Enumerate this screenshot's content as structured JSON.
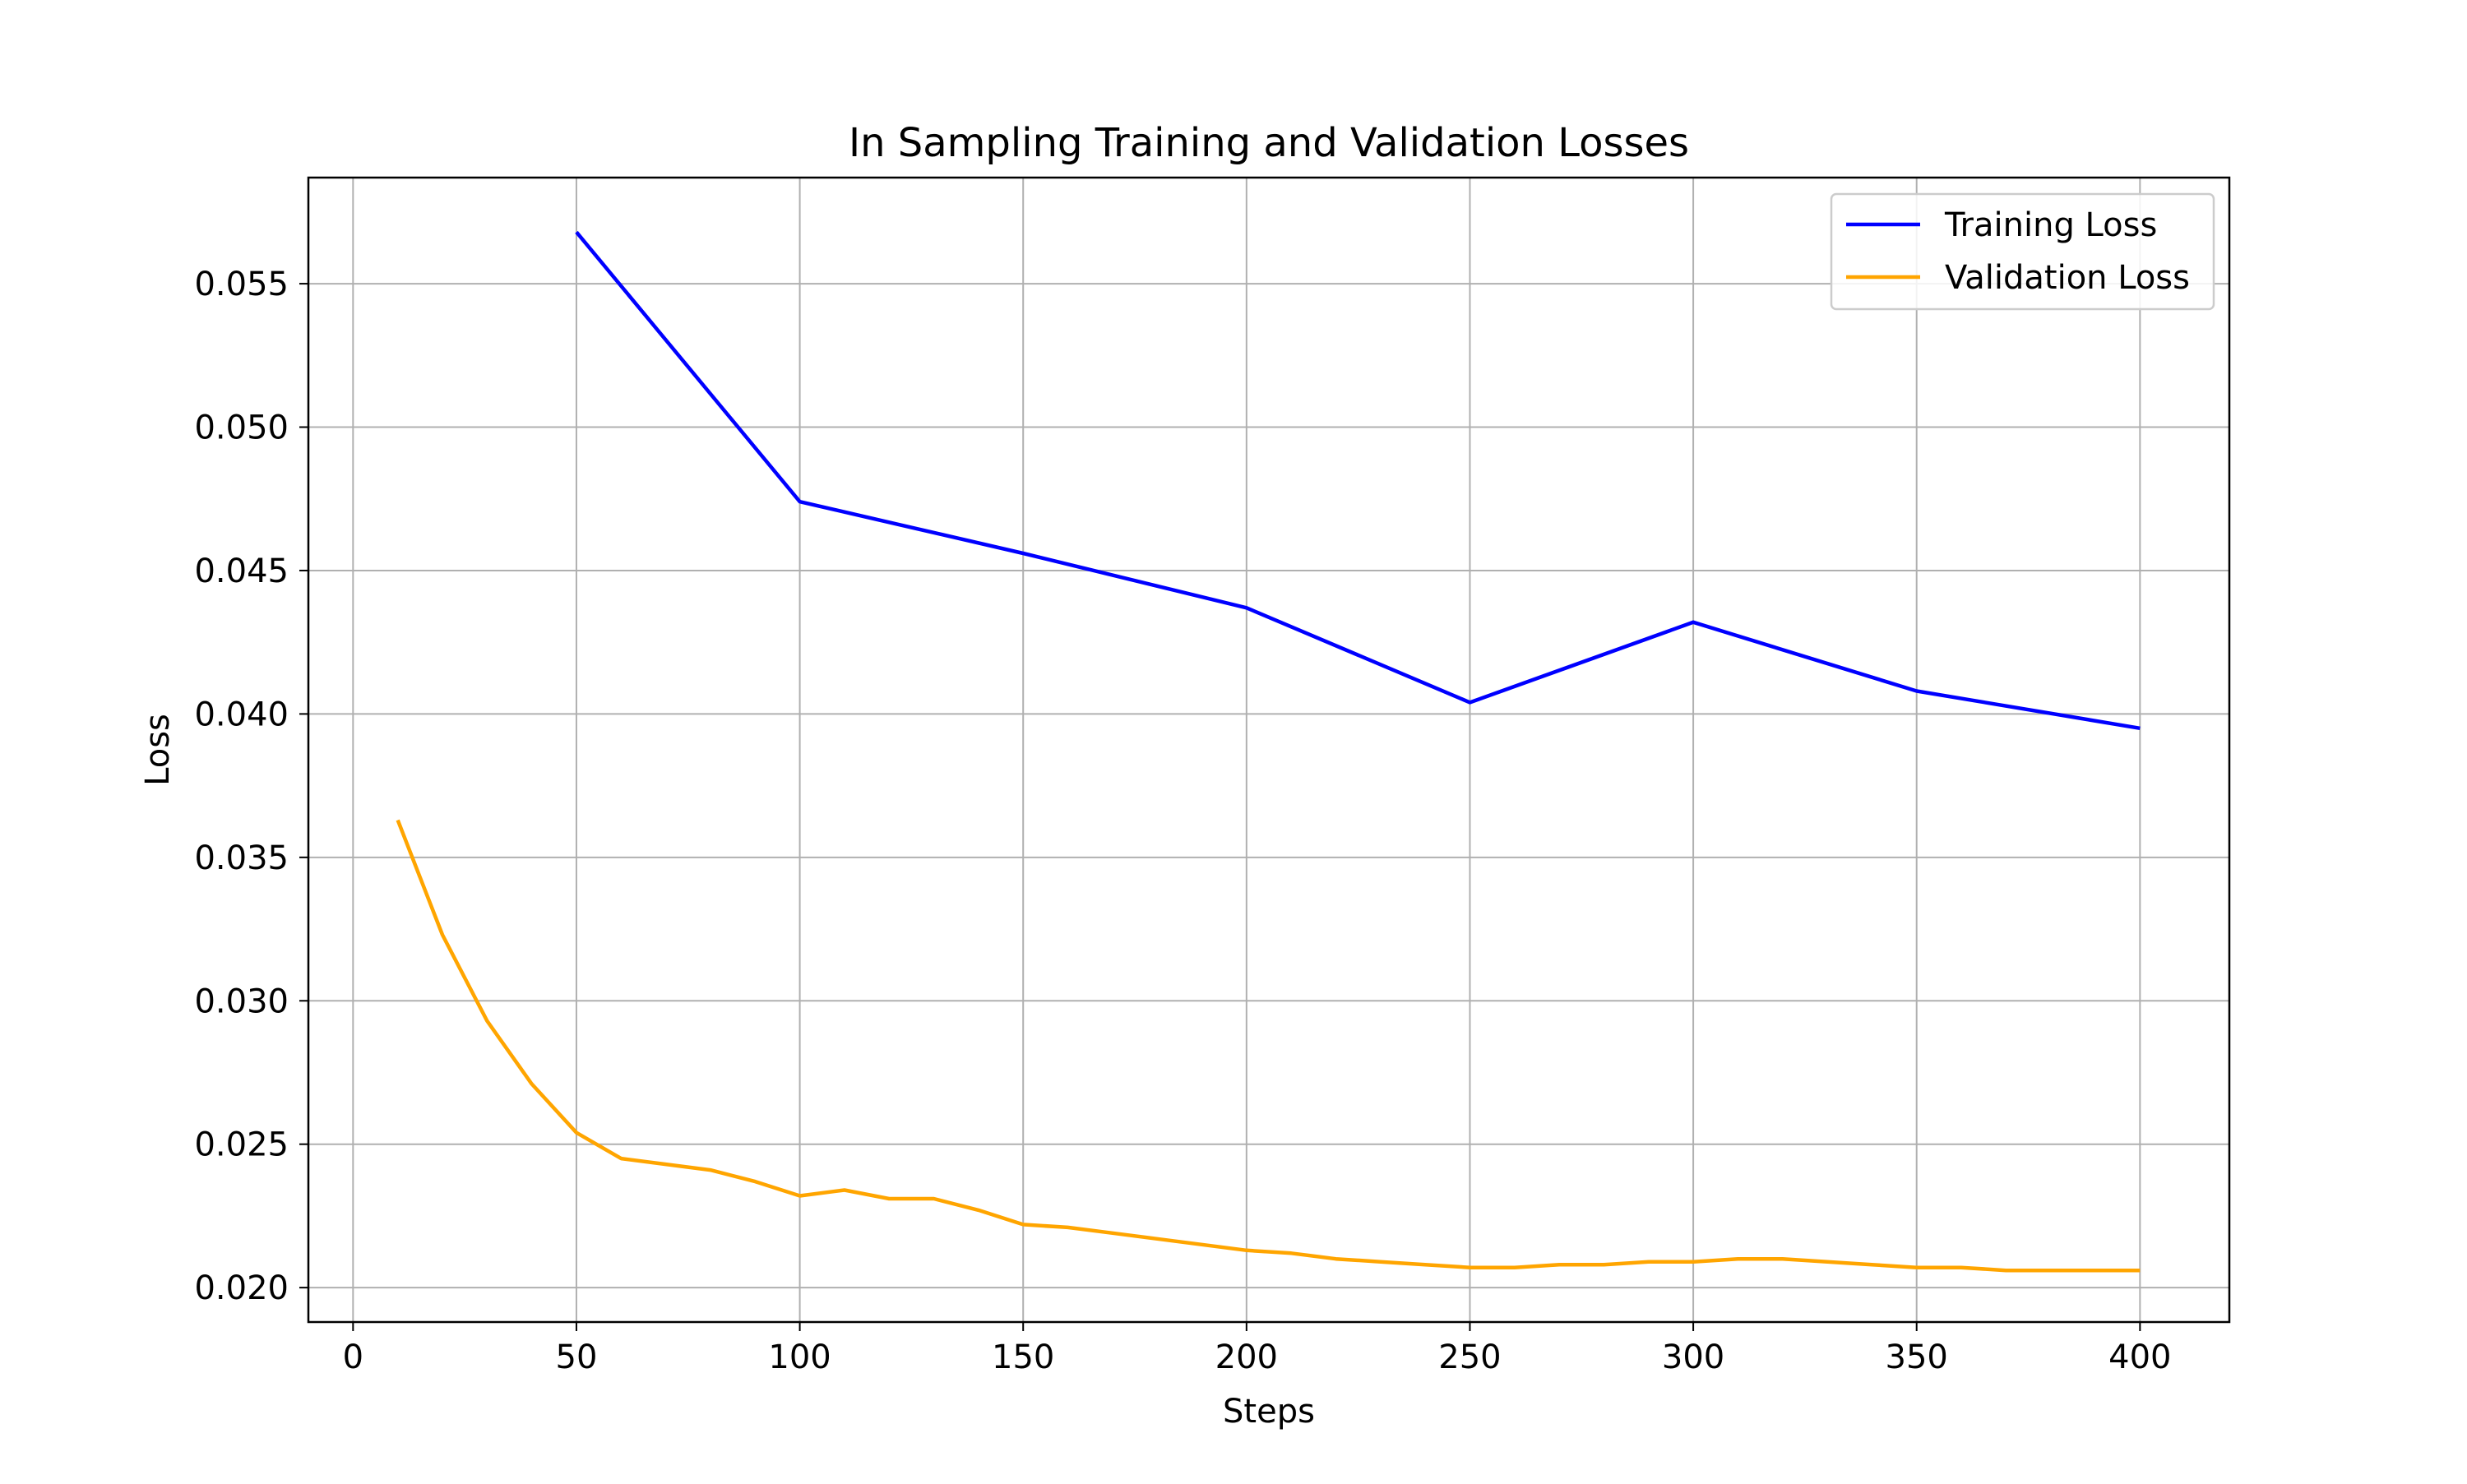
{
  "chart_data": {
    "type": "line",
    "title": "In Sampling Training and Validation Losses",
    "xlabel": "Steps",
    "ylabel": "Loss",
    "xlim": [
      -10,
      420
    ],
    "ylim": [
      0.0188,
      0.0587
    ],
    "xticks": [
      0,
      50,
      100,
      150,
      200,
      250,
      300,
      350,
      400
    ],
    "xtick_labels": [
      "0",
      "50",
      "100",
      "150",
      "200",
      "250",
      "300",
      "350",
      "400"
    ],
    "yticks": [
      0.02,
      0.025,
      0.03,
      0.035,
      0.04,
      0.045,
      0.05,
      0.055
    ],
    "ytick_labels": [
      "0.020",
      "0.025",
      "0.030",
      "0.035",
      "0.040",
      "0.045",
      "0.050",
      "0.055"
    ],
    "grid": true,
    "legend_position": "top-right",
    "series": [
      {
        "name": "Training Loss",
        "color": "#0000ff",
        "x": [
          50,
          100,
          150,
          200,
          250,
          300,
          350,
          400
        ],
        "y": [
          0.0568,
          0.0474,
          0.0456,
          0.0437,
          0.0404,
          0.0432,
          0.0408,
          0.0395
        ]
      },
      {
        "name": "Validation Loss",
        "color": "#ffa500",
        "x": [
          10,
          20,
          30,
          40,
          50,
          60,
          70,
          80,
          90,
          100,
          110,
          120,
          130,
          140,
          150,
          160,
          170,
          180,
          190,
          200,
          210,
          220,
          230,
          240,
          250,
          260,
          270,
          280,
          290,
          300,
          310,
          320,
          330,
          340,
          350,
          360,
          370,
          380,
          390,
          400
        ],
        "y": [
          0.0363,
          0.0323,
          0.0293,
          0.0271,
          0.0254,
          0.0245,
          0.0243,
          0.0241,
          0.0237,
          0.0232,
          0.0234,
          0.0231,
          0.0231,
          0.0227,
          0.0222,
          0.0221,
          0.0219,
          0.0217,
          0.0215,
          0.0213,
          0.0212,
          0.021,
          0.0209,
          0.0208,
          0.0207,
          0.0207,
          0.0208,
          0.0208,
          0.0209,
          0.0209,
          0.021,
          0.021,
          0.0209,
          0.0208,
          0.0207,
          0.0207,
          0.0206,
          0.0206,
          0.0206,
          0.0206
        ]
      }
    ]
  }
}
